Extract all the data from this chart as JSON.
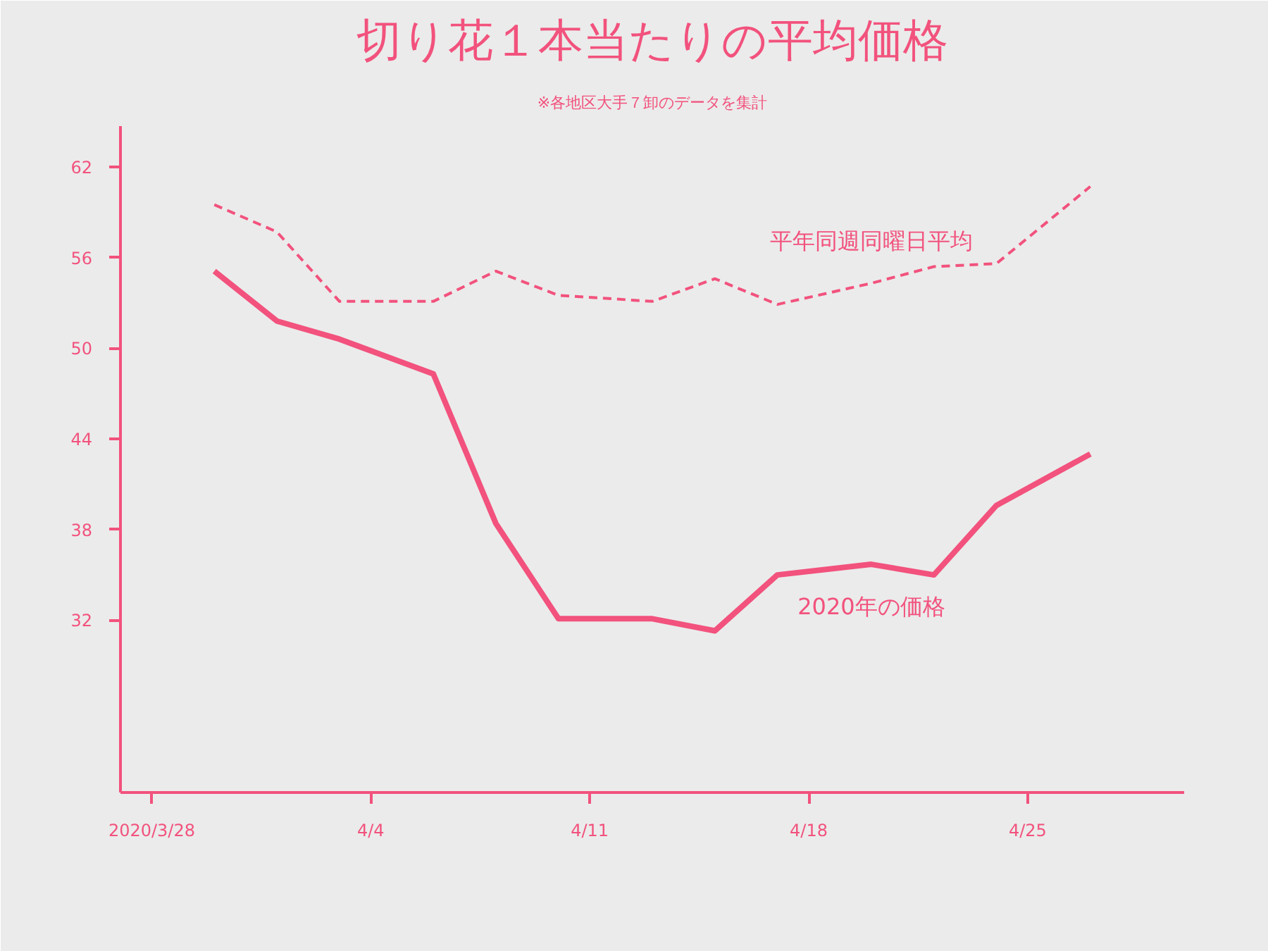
{
  "chart_data": {
    "type": "line",
    "title": "切り花１本当たりの平均価格",
    "subtitle": "※各地区大手７卸のデータを集計",
    "x": [
      "2020-03-30",
      "2020-04-01",
      "2020-04-03",
      "2020-04-06",
      "2020-04-08",
      "2020-04-10",
      "2020-04-13",
      "2020-04-15",
      "2020-04-17",
      "2020-04-20",
      "2020-04-22",
      "2020-04-24",
      "2020-04-27"
    ],
    "series": [
      {
        "name": "平年同週同曜日平均",
        "color": "#f2527d",
        "line_style": "dashed",
        "values": [
          59.5,
          57.7,
          53.1,
          53.1,
          55.1,
          53.5,
          53.1,
          54.6,
          52.9,
          54.3,
          55.4,
          55.6,
          60.7
        ]
      },
      {
        "name": "2020年の価格",
        "color": "#f2527d",
        "line_style": "solid",
        "values": [
          55.1,
          51.8,
          50.6,
          48.3,
          38.4,
          32.1,
          32.1,
          31.3,
          35.0,
          35.7,
          35.0,
          39.6,
          43.0
        ]
      }
    ],
    "xlim": [
      "2020-03-27",
      "2020-04-30"
    ],
    "xticks": [
      {
        "value": "2020-03-28",
        "label": "2020/3/28"
      },
      {
        "value": "2020-04-04",
        "label": "4/4"
      },
      {
        "value": "2020-04-11",
        "label": "4/11"
      },
      {
        "value": "2020-04-18",
        "label": "4/18"
      },
      {
        "value": "2020-04-25",
        "label": "4/25"
      }
    ],
    "ylim": [
      20.6,
      64.7
    ],
    "yticks": [
      32,
      38,
      44,
      50,
      56,
      62
    ],
    "grid": false,
    "marker": "none"
  }
}
